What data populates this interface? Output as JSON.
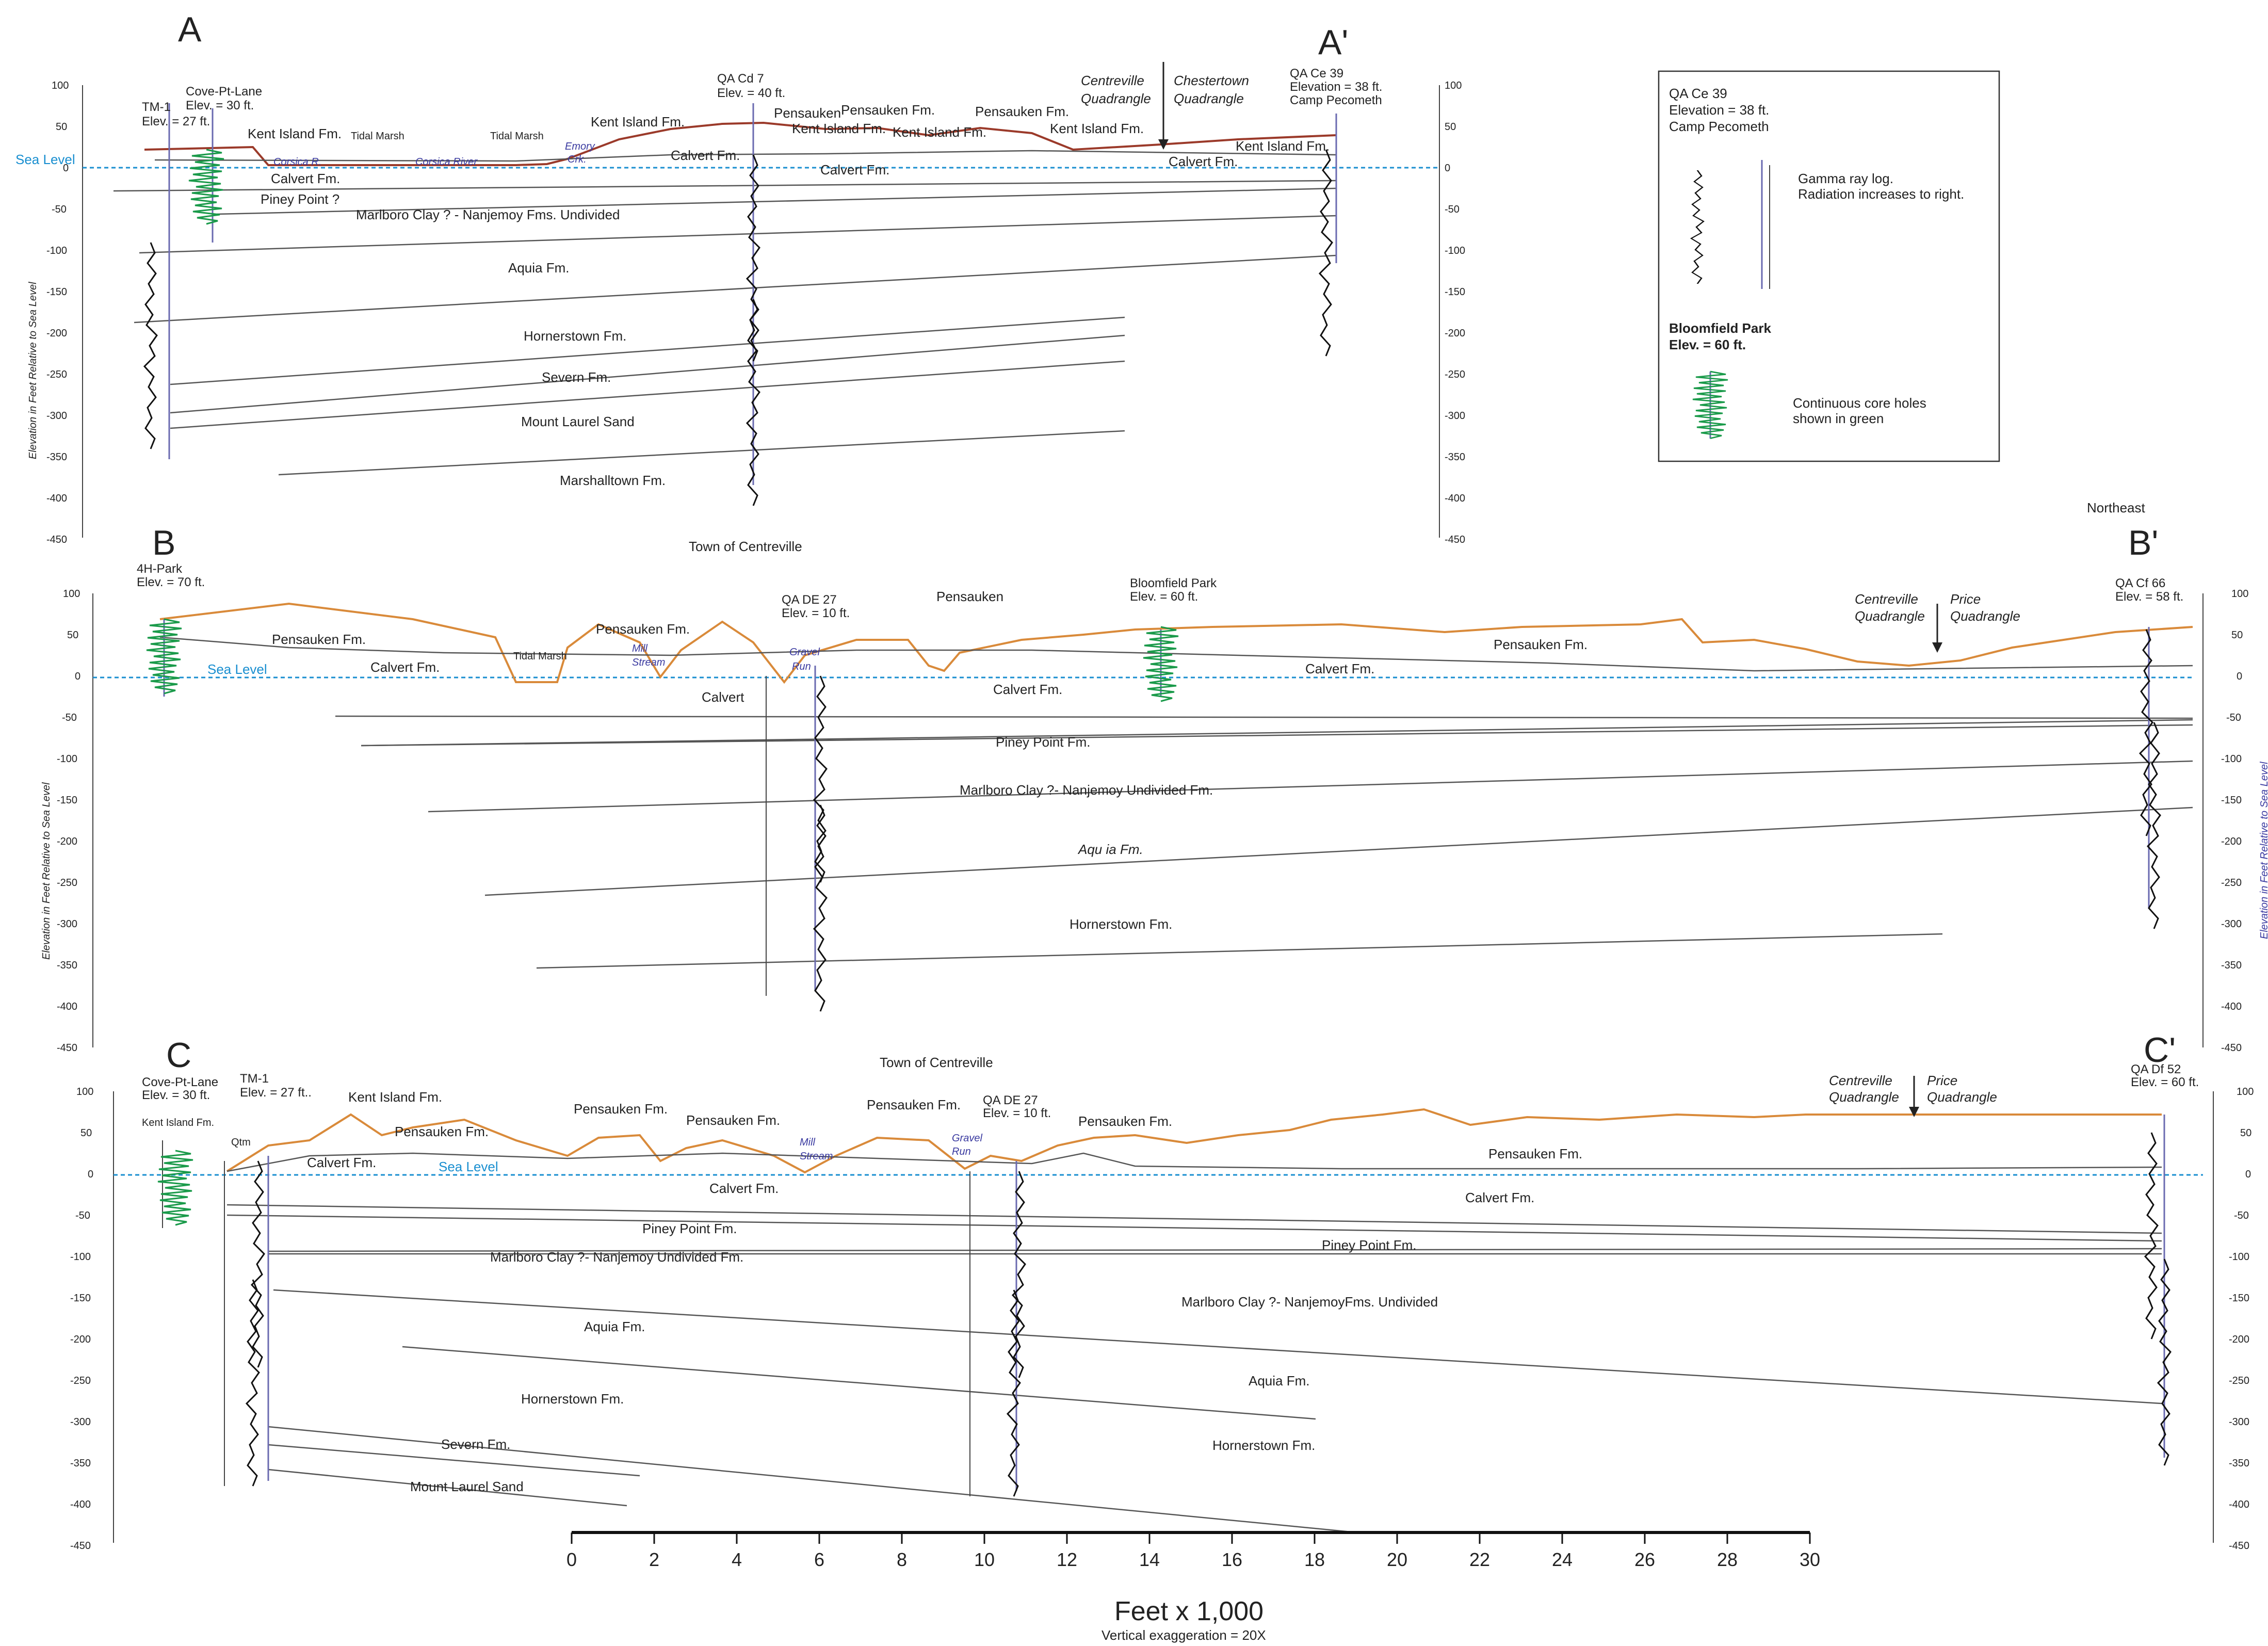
{
  "colors": {
    "topo_orange": "#d98a3a",
    "topo_red": "#9b3a2a",
    "sea_level": "#1a8fd0",
    "contact_line": "#555555",
    "well_line": "#6a6ab0",
    "core_green": "#1a9a4a",
    "log_black": "#111111"
  },
  "elev_axis_ticks": [
    "100",
    "50",
    "0",
    "-50",
    "-100",
    "-150",
    "-200",
    "-250",
    "-300",
    "-350",
    "-400",
    "-450"
  ],
  "depth_ticks": [
    "0",
    "50",
    "100",
    "150",
    "200",
    "250",
    "300",
    "350",
    "400"
  ],
  "section_a": {
    "label_left": "A",
    "label_right": "A'",
    "y_axis_label": "Elevation in Feet Relative to Sea Level",
    "sea_level": "Sea Level",
    "wells": [
      {
        "name": "TM-1",
        "elev": "Elev. = 27 ft."
      },
      {
        "name": "Cove-Pt-Lane",
        "elev": "Elev. = 30 ft."
      },
      {
        "name": "QA Cd 7",
        "elev": "Elev. = 40 ft."
      },
      {
        "name": "QA Ce  39",
        "elev": "Elevation = 38 ft.",
        "extra": "Camp Pecometh"
      }
    ],
    "quadrangles": {
      "left": "Centreville",
      "left2": "Quadrangle",
      "right": "Chestertown",
      "right2": "Quadrangle"
    },
    "places": [
      "Tidal Marsh",
      "Tidal Marsh",
      "Corsica  R.",
      "Corsica  River",
      "Emory",
      "Crk."
    ],
    "formations": [
      "Kent Island Fm.",
      "Kent Island Fm.",
      "Pensauken",
      "Pensauken Fm.",
      "Kent Island Fm.",
      "Kent Island Fm.",
      "Pensauken Fm.",
      "Kent Island Fm.",
      "Kent Island Fm.",
      "Calvert Fm.",
      "Calvert Fm.",
      "Calvert Fm.",
      "Calvert Fm.",
      "Piney Point ?",
      "Marlboro Clay ? - Nanjemoy Fms. Undivided",
      "Aquia Fm.",
      "Hornerstown Fm.",
      "Severn Fm.",
      "Mount Laurel Sand",
      "Marshalltown Fm."
    ],
    "town": "Town of Centreville"
  },
  "legend": {
    "well": "QA Ce  39",
    "elev": "Elevation = 38 ft.",
    "place": "Camp Pecometh",
    "gamma_1": "Gamma ray log.",
    "gamma_2": "Radiation increases to right.",
    "core_title": "Bloomfield Park",
    "core_elev": "Elev. = 60 ft.",
    "core_1": "Continuous core holes",
    "core_2": "shown in green"
  },
  "section_b": {
    "label_left": "B",
    "label_right": "B'",
    "direction": "Northeast",
    "y_axis_label": "Elevation in Feet Relative to Sea Level",
    "sea_level": "Sea Level",
    "wells": [
      {
        "name": "4H-Park",
        "elev": "Elev. = 70 ft."
      },
      {
        "name": "QA DE   27",
        "elev": "Elev. = 10 ft."
      },
      {
        "name": "Bloomfield Park",
        "elev": "Elev. = 60 ft."
      },
      {
        "name": "QA Cf 66",
        "elev": "Elev. = 58 ft."
      }
    ],
    "quadrangles": {
      "left": "Centreville",
      "left2": "Quadrangle",
      "right": "Price",
      "right2": "Quadrangle"
    },
    "places": [
      "Tidal Marsh",
      "Mill",
      "Stream",
      "Gravel",
      "Run"
    ],
    "formations": [
      "Pensauken Fm.",
      "Pensauken Fm.",
      "Pensauken",
      "Pensauken Fm.",
      "Calvert Fm.",
      "Calvert",
      "Calvert Fm.",
      "Calvert Fm.",
      "Piney Point Fm.",
      "Marlboro Clay ?- Nanjemoy Undivided Fm.",
      "Aqu ia Fm.",
      "Hornerstown Fm."
    ],
    "town": "Town of Centreville"
  },
  "section_c": {
    "label_left": "C",
    "label_right": "C'",
    "sea_level": "Sea Level",
    "wells": [
      {
        "name": "Cove-Pt-Lane",
        "elev": "Elev. = 30 ft."
      },
      {
        "name": "TM-1",
        "elev": "Elev. = 27 ft.."
      },
      {
        "name": "QA DE   27",
        "elev": "Elev. = 10 ft."
      },
      {
        "name": "QA Df 52",
        "elev": "Elev. = 60 ft."
      }
    ],
    "quadrangles": {
      "left": "Centreville",
      "left2": "Quadrangle",
      "right": "Price",
      "right2": "Quadrangle"
    },
    "places": [
      "Mill",
      "Stream",
      "Gravel",
      "Run"
    ],
    "formations": [
      "Kent Island Fm.",
      "Kent Island Fm.",
      "Qtm",
      "Pensauken  Fm.",
      "Pensauken  Fm.",
      "Pensauken  Fm.",
      "Pensauken  Fm.",
      "Pensauken  Fm.",
      "Pensauken  Fm.",
      "Calvert  Fm.",
      "Calvert Fm.",
      "Calvert  Fm.",
      "Piney Point Fm.",
      "Piney Point Fm.",
      "Marlboro Clay ?- Nanjemoy Undivided Fm.",
      "Marlboro Clay ?- NanjemoyFms.  Undivided",
      "Aquia Fm.",
      "Aquia Fm.",
      "Hornerstown Fm.",
      "Hornerstown Fm.",
      "Severn Fm.",
      "Mount Laurel Sand"
    ]
  },
  "scale": {
    "ticks": [
      "0",
      "2",
      "4",
      "6",
      "8",
      "10",
      "12",
      "14",
      "16",
      "18",
      "20",
      "22",
      "24",
      "26",
      "28",
      "30"
    ],
    "title": "Feet x 1,000",
    "note": "Vertical exaggeration = 20X"
  }
}
